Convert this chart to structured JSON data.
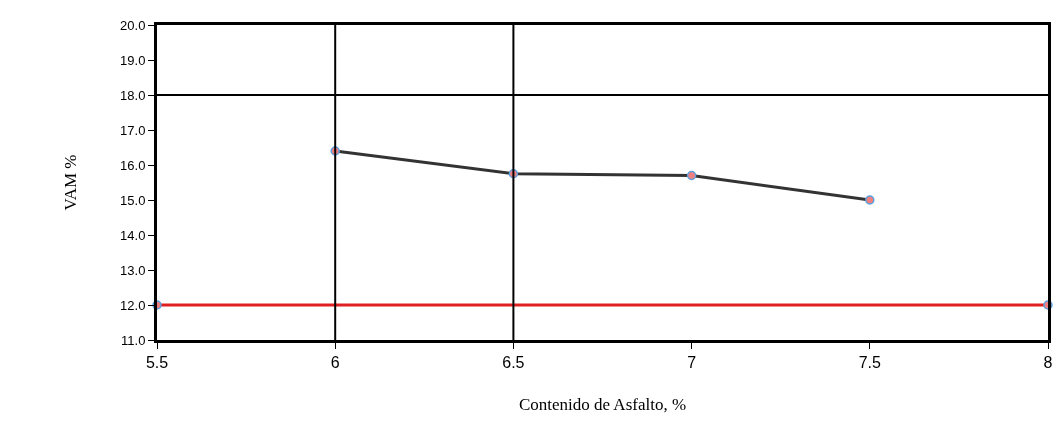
{
  "chart_data": {
    "type": "line",
    "xlabel": "Contenido de Asfalto, %",
    "ylabel": "VAM %",
    "series": [
      {
        "color": "#333333",
        "x": [
          6,
          6.5,
          7,
          7.5
        ],
        "values": [
          16.4,
          15.75,
          15.7,
          15.0
        ]
      },
      {
        "color": "#e02020",
        "x": [
          5.5,
          8
        ],
        "values": [
          12.0,
          12.0
        ]
      }
    ],
    "xlim": [
      5.5,
      8
    ],
    "xticks": [
      5.5,
      6,
      6.5,
      7,
      7.5,
      8
    ],
    "ylim": [
      11,
      20
    ],
    "yticks": [
      {
        "value": 11,
        "label": "11.0"
      },
      {
        "value": 12,
        "label": "12.0"
      },
      {
        "value": 13,
        "label": "13.0"
      },
      {
        "value": 14,
        "label": "14.0"
      },
      {
        "value": 15,
        "label": "15.0"
      },
      {
        "value": 16,
        "label": "16.0"
      },
      {
        "value": 17,
        "label": "17.0"
      },
      {
        "value": 18,
        "label": "18.0"
      },
      {
        "value": 19,
        "label": "19.0"
      },
      {
        "value": 20,
        "label": "20.0"
      }
    ],
    "ref_lines": [
      {
        "axis": "x",
        "value": 6,
        "color": "#000000"
      },
      {
        "axis": "x",
        "value": 6.5,
        "color": "#000000"
      },
      {
        "axis": "y",
        "value": 18,
        "color": "#000000"
      }
    ],
    "grid": false,
    "legend": false,
    "marker": "circle",
    "line_style": "solid"
  }
}
